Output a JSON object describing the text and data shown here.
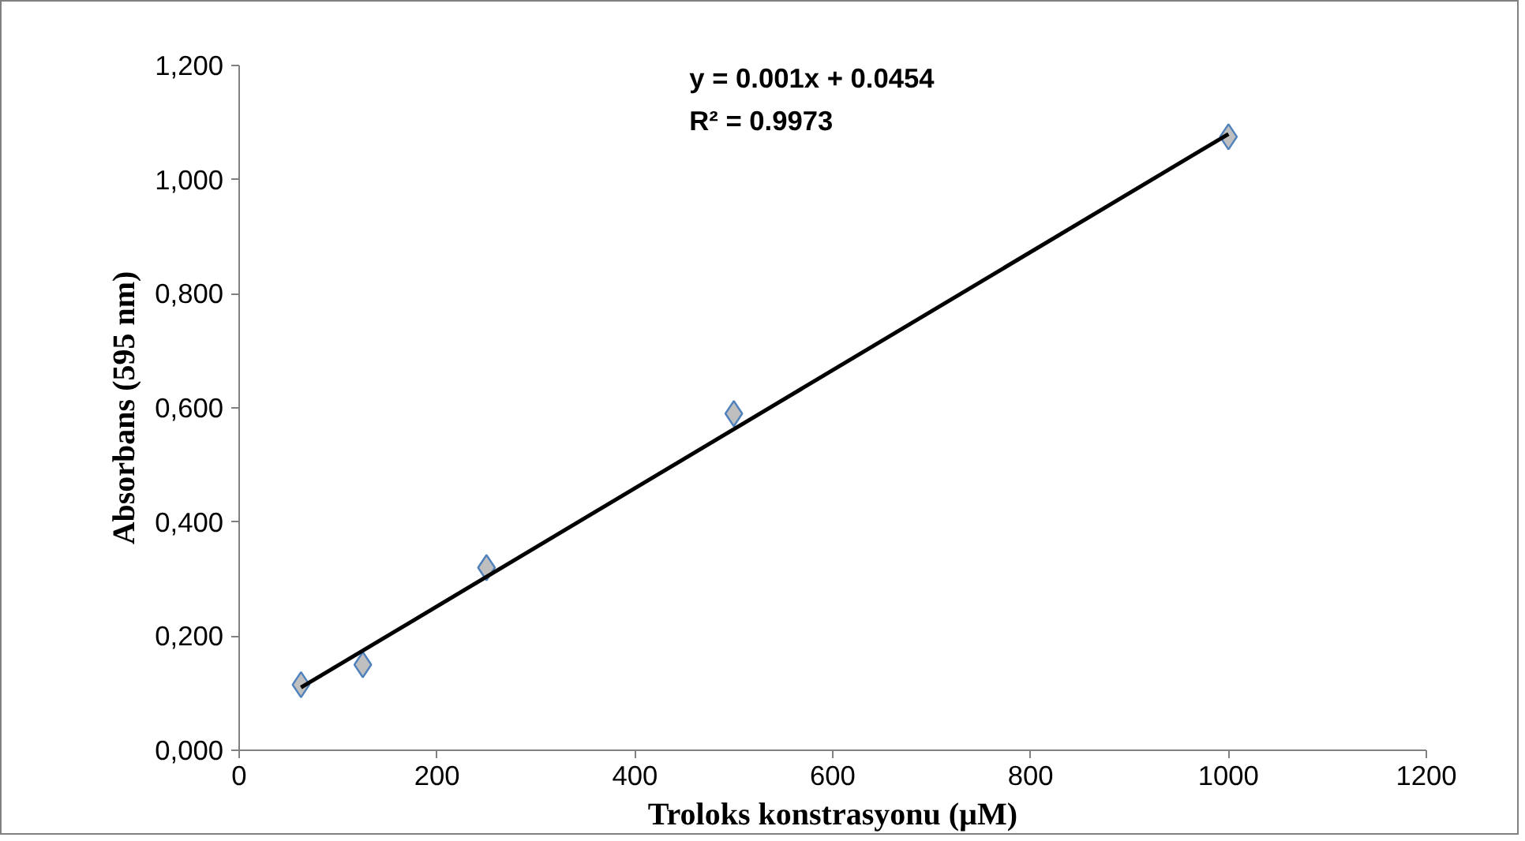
{
  "chart_data": {
    "type": "scatter",
    "xlabel": "Troloks konstrasyonu (µM)",
    "ylabel": "Absorbans (595 nm)",
    "xlim": [
      0,
      1200
    ],
    "xticks": [
      0,
      200,
      400,
      600,
      800,
      1000,
      1200
    ],
    "ylim": [
      0,
      1.2
    ],
    "yticks": [
      {
        "value": 0,
        "label": "0,000"
      },
      {
        "value": 0.2,
        "label": "0,200"
      },
      {
        "value": 0.4,
        "label": "0,400"
      },
      {
        "value": 0.6,
        "label": "0,600"
      },
      {
        "value": 0.8,
        "label": "0,800"
      },
      {
        "value": 1.0,
        "label": "1,000"
      },
      {
        "value": 1.2,
        "label": "1,200"
      }
    ],
    "marker": "diamond",
    "grid": false,
    "annotations": [
      "y = 0.001x + 0.0454",
      "R² = 0.9973"
    ],
    "series": [
      {
        "color": "#bfbfbf",
        "x": [
          62.5,
          125,
          250,
          500,
          1000
        ],
        "values": [
          0.115,
          0.15,
          0.32,
          0.59,
          1.075
        ]
      },
      {
        "type": "line",
        "marker": "none",
        "color": "#000000",
        "x": [
          62.5,
          1000
        ],
        "values": [
          0.11,
          1.08
        ]
      }
    ]
  }
}
